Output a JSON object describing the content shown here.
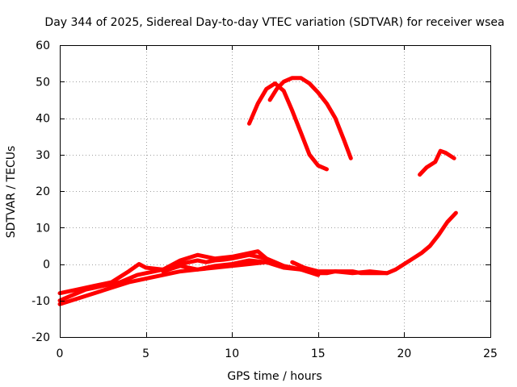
{
  "chart_data": {
    "type": "line",
    "title": "Day 344 of 2025, Sidereal Day-to-day VTEC variation (SDTVAR) for receiver wsea",
    "xlabel": "GPS time / hours",
    "ylabel": "SDTVAR / TECUs",
    "xlim": [
      0,
      25
    ],
    "ylim": [
      -20,
      60
    ],
    "xticks": [
      0,
      5,
      10,
      15,
      20,
      25
    ],
    "yticks": [
      -20,
      -10,
      0,
      10,
      20,
      30,
      40,
      50,
      60
    ],
    "grid": true,
    "colors": {
      "series": "#ff0000"
    },
    "series": [
      {
        "name": "trace-main",
        "x": [
          0,
          0.5,
          1,
          1.5,
          2,
          2.5,
          3,
          3.5,
          4,
          4.5,
          5,
          5.5,
          6,
          6.5,
          7,
          7.5,
          8,
          8.5,
          9,
          9.5,
          10,
          10.5,
          11,
          11.5,
          12,
          12.5,
          13,
          13.5,
          14,
          14.5,
          15,
          15.5,
          16,
          16.5,
          17,
          17.5,
          18,
          18.5,
          19,
          19.5,
          20,
          20.5,
          21,
          21.5,
          22,
          22.5,
          23
        ],
        "y": [
          -10,
          -9,
          -8,
          -7,
          -6.5,
          -6,
          -5.5,
          -5,
          -4,
          -3,
          -2.5,
          -2,
          -1.5,
          -1,
          0,
          0.5,
          1,
          0.5,
          1,
          1.2,
          1.5,
          2,
          2.5,
          2,
          1.5,
          0.5,
          -0.5,
          -1,
          -1.5,
          -2,
          -2.5,
          -2.5,
          -2,
          -2,
          -2,
          -2.5,
          -2.5,
          -2.5,
          -2.5,
          -1.5,
          0,
          1.5,
          3,
          5,
          8,
          11.5,
          14
        ]
      },
      {
        "name": "trace-low-1",
        "x": [
          0,
          1,
          2,
          3,
          4,
          5,
          6,
          7,
          8,
          9,
          10,
          11,
          12
        ],
        "y": [
          -11,
          -9.5,
          -8,
          -6.5,
          -5,
          -4,
          -3,
          -2,
          -1.5,
          -1,
          -0.5,
          0,
          0.5
        ]
      },
      {
        "name": "trace-high-1",
        "x": [
          0,
          1,
          2,
          3,
          4,
          4.6,
          5,
          6,
          7,
          8,
          9,
          10,
          11,
          11.5,
          12
        ],
        "y": [
          -8,
          -7,
          -6,
          -5,
          -2,
          0,
          -1,
          -1.5,
          1,
          2.5,
          1.5,
          2,
          3,
          3.5,
          1.5
        ]
      },
      {
        "name": "trace-mid-1",
        "x": [
          6,
          7,
          8,
          9,
          10,
          11,
          12,
          13,
          14,
          15
        ],
        "y": [
          -2,
          -0.5,
          -1.5,
          -0.5,
          0,
          1,
          0.5,
          -1,
          -1.5,
          -3
        ]
      },
      {
        "name": "trace-mid-2",
        "x": [
          13.5,
          14.2,
          15,
          16,
          17,
          18,
          19
        ],
        "y": [
          0.5,
          -1,
          -2,
          -2,
          -2.5,
          -2,
          -2.5
        ]
      },
      {
        "name": "trace-arc-1",
        "x": [
          11,
          11.5,
          12,
          12.5,
          13,
          13.5,
          14,
          14.5,
          15,
          15.5
        ],
        "y": [
          38.5,
          44,
          48,
          49.5,
          47.5,
          42,
          36,
          30,
          27,
          26
        ]
      },
      {
        "name": "trace-arc-2",
        "x": [
          12.2,
          12.6,
          13,
          13.5,
          14,
          14.5,
          15,
          15.5,
          16,
          16.5,
          16.9
        ],
        "y": [
          45,
          48,
          50,
          51,
          51,
          49.5,
          47,
          44,
          40,
          34,
          29
        ]
      },
      {
        "name": "trace-late-1",
        "x": [
          20.9,
          21.3,
          21.8,
          22.1,
          22.4,
          22.9
        ],
        "y": [
          24.5,
          26.5,
          28,
          31,
          30.5,
          29
        ]
      }
    ]
  }
}
